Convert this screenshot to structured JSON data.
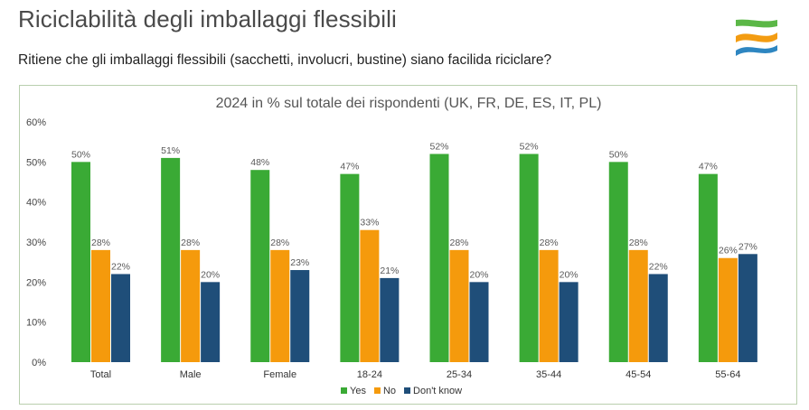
{
  "header": {
    "title": "Riciclabilità degli imballaggi flessibili",
    "question": "Ritiene che gli imballaggi flessibili (sacchetti, involucri, bustine) siano facilida riciclare?"
  },
  "colors": {
    "yes": "#3aaa35",
    "no": "#f59a0c",
    "dont_know": "#1f4e79",
    "gridline": "#d9d9d9",
    "frame": "#b9cfae",
    "logo_green": "#5bb747",
    "logo_orange": "#f39c12",
    "logo_blue": "#2e86c1"
  },
  "chart_data": {
    "type": "bar",
    "title": "2024 in % sul totale dei rispondenti (UK, FR, DE, ES, IT, PL)",
    "categories": [
      "Total",
      "Male",
      "Female",
      "18-24",
      "25-34",
      "35-44",
      "45-54",
      "55-64"
    ],
    "series": [
      {
        "name": "Yes",
        "values": [
          50,
          51,
          48,
          47,
          52,
          52,
          50,
          47
        ],
        "color_key": "yes"
      },
      {
        "name": "No",
        "values": [
          28,
          28,
          28,
          33,
          28,
          28,
          28,
          26
        ],
        "color_key": "no"
      },
      {
        "name": "Don't know",
        "values": [
          22,
          20,
          23,
          21,
          20,
          20,
          22,
          27
        ],
        "color_key": "dont_know"
      }
    ],
    "yticks": [
      "0%",
      "10%",
      "20%",
      "30%",
      "40%",
      "50%",
      "60%"
    ],
    "ylim": [
      0,
      60
    ],
    "value_suffix": "%",
    "xlabel": "",
    "ylabel": "",
    "grid": false,
    "legend_position": "bottom-center"
  }
}
